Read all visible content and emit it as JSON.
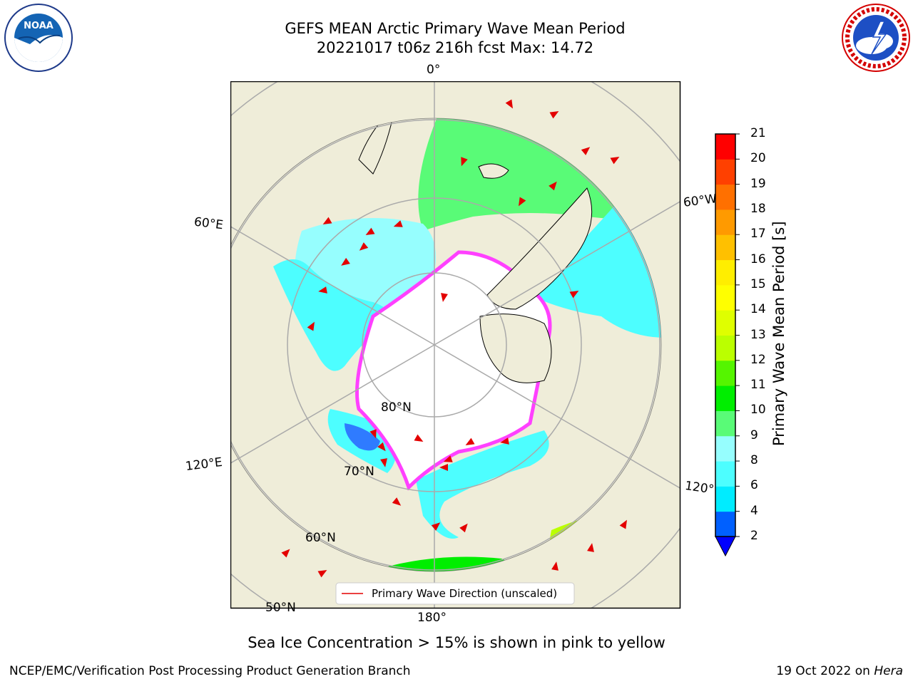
{
  "header": {
    "title_line1": "GEFS MEAN Arctic Primary Wave Mean Period",
    "title_line2": "20221017 t06z 216h fcst   Max: 14.72"
  },
  "logos": {
    "left": {
      "icon": "noaa-logo",
      "text": "NOAA"
    },
    "right": {
      "icon": "nws-logo"
    }
  },
  "map": {
    "projection": "north-polar-stereographic",
    "longitude_labels": [
      "0°",
      "60°W",
      "120°W",
      "180°",
      "120°E",
      "60°E"
    ],
    "latitude_labels": [
      "80°N",
      "70°N",
      "60°N",
      "50°N"
    ],
    "legend_label": "Primary Wave Direction (unscaled)",
    "colors": {
      "land": "#efedd9",
      "ocean_cyan": "#4dfeff",
      "ocean_light": "#96fefe",
      "ocean_green": "#59fb77",
      "sea_ice_edge": "#ff40ff",
      "arrow": "#e30000"
    }
  },
  "colorbar": {
    "label": "Primary Wave Mean Period [s]",
    "ticks": [
      "2",
      "4",
      "6",
      "8",
      "9",
      "10",
      "11",
      "12",
      "13",
      "14",
      "15",
      "16",
      "17",
      "18",
      "19",
      "20",
      "21"
    ],
    "colors": [
      "#0060ff",
      "#00ecff",
      "#4dfeff",
      "#96fefe",
      "#59fb77",
      "#00ee00",
      "#55f500",
      "#bbff00",
      "#dfff00",
      "#ffff00",
      "#ffee00",
      "#ffc000",
      "#ff9a00",
      "#ff7000",
      "#ff4000",
      "#ff0000"
    ],
    "under_color": "#0000ff"
  },
  "footer": {
    "note": "Sea Ice Concentration > 15% is shown in pink to yellow",
    "credit": "NCEP/EMC/Verification Post Processing Product Generation Branch",
    "date": "19 Oct 2022 on ",
    "machine": "Hera"
  }
}
